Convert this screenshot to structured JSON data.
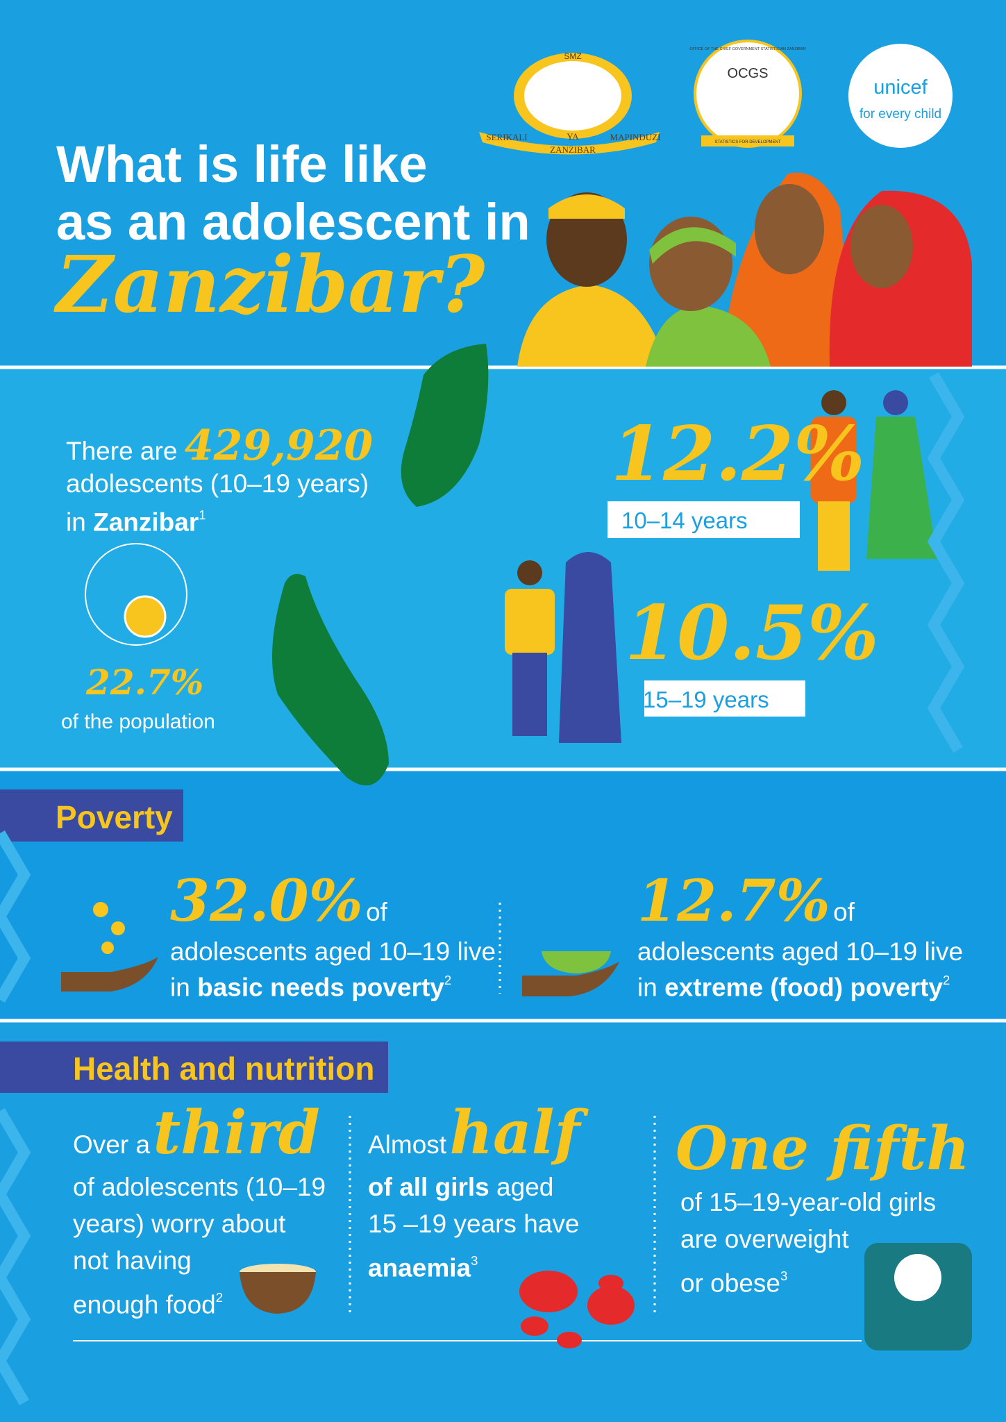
{
  "logos": {
    "smz": {
      "top": "SMZ",
      "left": "SERIKALI",
      "middle": "YA",
      "right": "MAPINDUZI",
      "bottom": "ZANZIBAR"
    },
    "ocgs": {
      "name": "OCGS",
      "ring": "OFFICE OF THE CHIEF GOVERNMENT STATISTICIAN ZANZIBAR",
      "ribbon": "STATISTICS FOR DEVELOPMENT"
    },
    "unicef": {
      "name": "unicef",
      "tagline": "for every child"
    }
  },
  "header": {
    "title": [
      "What is life like",
      "as an adolescent in"
    ],
    "highlight": "Zanzibar?"
  },
  "population": {
    "intro": "There are",
    "count": "429,920",
    "line2": "adolescents (10–19 years)",
    "line3": "in",
    "place": "Zanzibar",
    "note": "1",
    "share": "22.7%",
    "share_label": "of the population",
    "groups": [
      {
        "percent": "12.2%",
        "label": "10–14 years"
      },
      {
        "percent": "10.5%",
        "label": "15–19 years"
      }
    ]
  },
  "poverty": {
    "heading": "Poverty",
    "items": [
      {
        "percent": "32.0%",
        "of": "of",
        "line1": "adolescents aged 10–19 live",
        "in": "in",
        "bold": "basic needs poverty",
        "note": "2"
      },
      {
        "percent": "12.7%",
        "of": "of",
        "line1": "adolescents aged 10–19 live",
        "in": "in",
        "bold": "extreme (food) poverty",
        "note": "2"
      }
    ]
  },
  "health": {
    "heading": "Health and nutrition",
    "items": [
      {
        "lead": "Over a",
        "highlight": "third",
        "lines": [
          "of adolescents (10–19",
          "years) worry about",
          "not having",
          "enough food"
        ],
        "note": "2"
      },
      {
        "lead": "Almost",
        "highlight": "half",
        "bold1": "of all girls",
        "rest1": "aged",
        "line2": "15 –19 years have",
        "bold2": "anaemia",
        "note": "3"
      },
      {
        "highlight": "One fifth",
        "lines": [
          "of 15–19-year-old girls",
          "are overweight",
          "or obese"
        ],
        "note": "3"
      }
    ]
  }
}
